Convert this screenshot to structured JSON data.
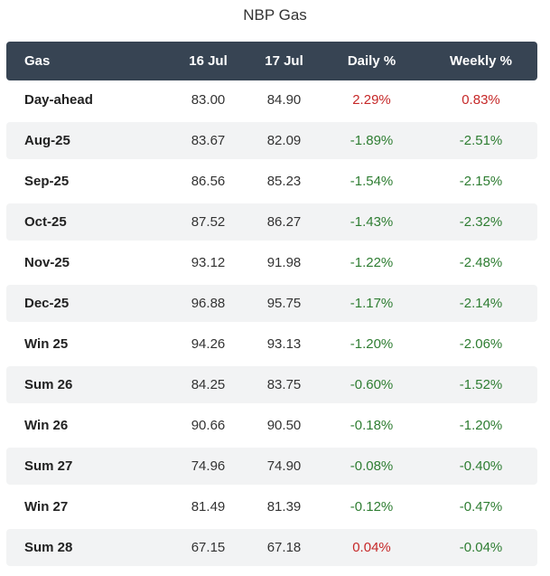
{
  "title": "NBP Gas",
  "header": {
    "col_name": "Gas",
    "col_d1": "16 Jul",
    "col_d2": "17 Jul",
    "col_daily": "Daily %",
    "col_weekly": "Weekly %"
  },
  "colors": {
    "header_bg": "#374453",
    "positive": "#c62828",
    "negative": "#2e7d32",
    "alt_row": "#f2f3f4"
  },
  "rows": [
    {
      "name": "Day-ahead",
      "d1": "83.00",
      "d2": "84.90",
      "daily": "2.29%",
      "weekly": "0.83%"
    },
    {
      "name": "Aug-25",
      "d1": "83.67",
      "d2": "82.09",
      "daily": "-1.89%",
      "weekly": "-2.51%"
    },
    {
      "name": "Sep-25",
      "d1": "86.56",
      "d2": "85.23",
      "daily": "-1.54%",
      "weekly": "-2.15%"
    },
    {
      "name": "Oct-25",
      "d1": "87.52",
      "d2": "86.27",
      "daily": "-1.43%",
      "weekly": "-2.32%"
    },
    {
      "name": "Nov-25",
      "d1": "93.12",
      "d2": "91.98",
      "daily": "-1.22%",
      "weekly": "-2.48%"
    },
    {
      "name": "Dec-25",
      "d1": "96.88",
      "d2": "95.75",
      "daily": "-1.17%",
      "weekly": "-2.14%"
    },
    {
      "name": "Win 25",
      "d1": "94.26",
      "d2": "93.13",
      "daily": "-1.20%",
      "weekly": "-2.06%"
    },
    {
      "name": "Sum 26",
      "d1": "84.25",
      "d2": "83.75",
      "daily": "-0.60%",
      "weekly": "-1.52%"
    },
    {
      "name": "Win 26",
      "d1": "90.66",
      "d2": "90.50",
      "daily": "-0.18%",
      "weekly": "-1.20%"
    },
    {
      "name": "Sum 27",
      "d1": "74.96",
      "d2": "74.90",
      "daily": "-0.08%",
      "weekly": "-0.40%"
    },
    {
      "name": "Win 27",
      "d1": "81.49",
      "d2": "81.39",
      "daily": "-0.12%",
      "weekly": "-0.47%"
    },
    {
      "name": "Sum 28",
      "d1": "67.15",
      "d2": "67.18",
      "daily": "0.04%",
      "weekly": "-0.04%"
    }
  ]
}
